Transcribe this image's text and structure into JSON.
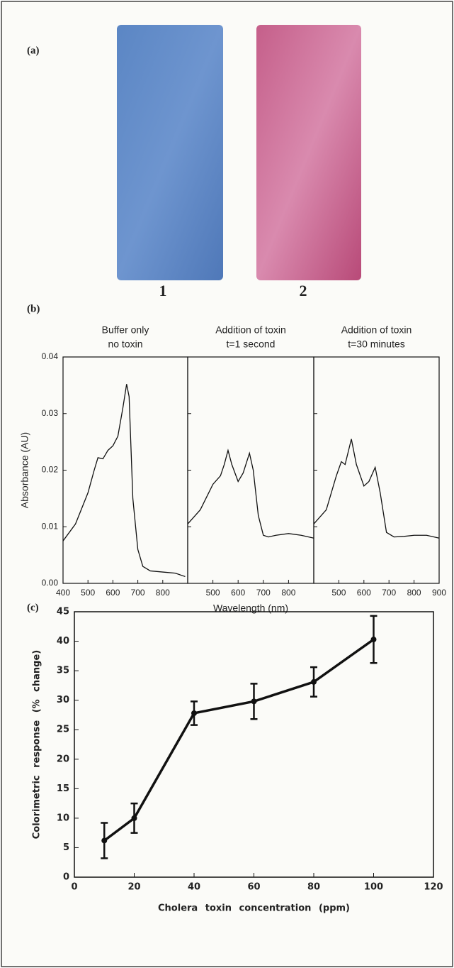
{
  "photo": {
    "panel_label": "(a)",
    "strip_labels": [
      "1",
      "2"
    ]
  },
  "chart_data": [
    {
      "type": "line",
      "panel_label": "(b)",
      "title": [
        "Buffer only",
        "no toxin"
      ],
      "ylabel": "Absorbance (AU)",
      "x": [
        400,
        450,
        500,
        525,
        540,
        560,
        580,
        600,
        620,
        640,
        655,
        665,
        680,
        700,
        720,
        750,
        800,
        850,
        890
      ],
      "values": [
        0.0075,
        0.0105,
        0.016,
        0.02,
        0.0222,
        0.022,
        0.0235,
        0.0243,
        0.026,
        0.031,
        0.0352,
        0.033,
        0.015,
        0.006,
        0.003,
        0.0022,
        0.002,
        0.0018,
        0.0012
      ],
      "color": "#111111",
      "xlim": [
        400,
        900
      ],
      "xticks": [
        400,
        500,
        600,
        700,
        800
      ],
      "ylim": [
        0,
        0.04
      ],
      "yticks": [
        {
          "value": 0,
          "label": "0.00"
        },
        0.01,
        0.02,
        0.03,
        0.04
      ]
    },
    {
      "type": "line",
      "title": [
        "Addition of toxin",
        "t=1 second"
      ],
      "xlabel": "Wavelength (nm)",
      "x": [
        400,
        450,
        500,
        530,
        545,
        560,
        575,
        600,
        620,
        645,
        660,
        680,
        700,
        720,
        750,
        800,
        850,
        900
      ],
      "values": [
        0.0105,
        0.013,
        0.0175,
        0.019,
        0.021,
        0.0235,
        0.021,
        0.018,
        0.0195,
        0.023,
        0.02,
        0.012,
        0.0085,
        0.0082,
        0.0085,
        0.0088,
        0.0085,
        0.008
      ],
      "color": "#111111",
      "xlim": [
        400,
        900
      ],
      "xticks": [
        500,
        600,
        700,
        800
      ],
      "ylim": [
        0,
        0.04
      ],
      "yticks": [
        0.01,
        0.02,
        0.03
      ]
    },
    {
      "type": "line",
      "title": [
        "Addition of toxin",
        "t=30 minutes"
      ],
      "x": [
        400,
        450,
        490,
        510,
        525,
        550,
        570,
        600,
        620,
        645,
        665,
        690,
        720,
        760,
        800,
        850,
        900
      ],
      "values": [
        0.0105,
        0.013,
        0.019,
        0.0215,
        0.021,
        0.0255,
        0.021,
        0.0172,
        0.018,
        0.0205,
        0.016,
        0.009,
        0.0082,
        0.0083,
        0.0085,
        0.0085,
        0.008
      ],
      "color": "#111111",
      "xlim": [
        400,
        900
      ],
      "xticks": [
        500,
        600,
        700,
        800,
        900
      ],
      "ylim": [
        0,
        0.04
      ],
      "yticks": [
        0.01,
        0.02,
        0.03
      ]
    },
    {
      "type": "errorline",
      "panel_label": "(c)",
      "xlabel": "Cholera toxin concentration (ppm)",
      "ylabel": "Colorimetric response (% change)",
      "x": [
        10,
        20,
        40,
        60,
        80,
        100
      ],
      "values": [
        6.2,
        10,
        27.8,
        29.8,
        33.1,
        40.3
      ],
      "errors": [
        3,
        2.5,
        2,
        3,
        2.5,
        4
      ],
      "color": "#111111",
      "xlim": [
        0,
        120
      ],
      "xticks": [
        0,
        20,
        40,
        60,
        80,
        100,
        120
      ],
      "ylim": [
        0,
        45
      ],
      "yticks": [
        0,
        5,
        10,
        15,
        20,
        25,
        30,
        35,
        40,
        45
      ]
    }
  ]
}
